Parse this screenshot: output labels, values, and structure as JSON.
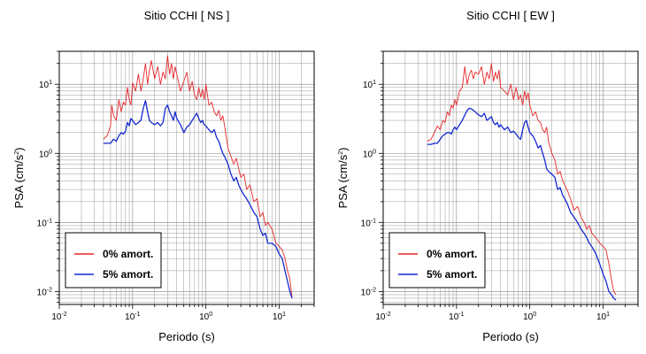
{
  "colors": {
    "undamped": "#e8262a",
    "damped": "#1428d2",
    "grid": "#9a9a9a",
    "frame": "#000000"
  },
  "chart_data": [
    {
      "type": "line",
      "title": "Sitio CCHI [ NS ]",
      "xlabel": "Periodo (s)",
      "ylabel_main": "PSA (cm/s",
      "ylabel_sup": "2",
      "ylabel_end": ")",
      "xscale": "log",
      "yscale": "log",
      "xlim": [
        0.01,
        30
      ],
      "ylim": [
        0.0065,
        30
      ],
      "grid": true,
      "legend_position": "bottom-left",
      "x_ticks": [
        {
          "base": "10",
          "exp": "-2",
          "value": 0.01
        },
        {
          "base": "10",
          "exp": "-1",
          "value": 0.1
        },
        {
          "base": "10",
          "exp": "0",
          "value": 1
        },
        {
          "base": "10",
          "exp": "1",
          "value": 10
        }
      ],
      "y_ticks": [
        {
          "base": "10",
          "exp": "-2",
          "value": 0.01
        },
        {
          "base": "10",
          "exp": "-1",
          "value": 0.1
        },
        {
          "base": "10",
          "exp": "0",
          "value": 1
        },
        {
          "base": "10",
          "exp": "1",
          "value": 10
        }
      ],
      "series": [
        {
          "name": "0% amort.",
          "x": [
            0.04,
            0.045,
            0.05,
            0.052,
            0.055,
            0.06,
            0.065,
            0.07,
            0.075,
            0.08,
            0.085,
            0.09,
            0.095,
            0.1,
            0.11,
            0.12,
            0.13,
            0.14,
            0.15,
            0.16,
            0.17,
            0.18,
            0.2,
            0.22,
            0.24,
            0.26,
            0.28,
            0.3,
            0.32,
            0.34,
            0.36,
            0.38,
            0.4,
            0.45,
            0.5,
            0.55,
            0.6,
            0.65,
            0.7,
            0.75,
            0.8,
            0.85,
            0.9,
            0.95,
            1.0,
            1.1,
            1.2,
            1.3,
            1.4,
            1.5,
            1.6,
            1.7,
            1.8,
            2.0,
            2.2,
            2.4,
            2.6,
            2.8,
            3.0,
            3.3,
            3.6,
            4.0,
            4.5,
            5.0,
            5.5,
            6.0,
            6.5,
            7.0,
            8.0,
            9.0,
            10.0,
            11.0,
            12.0,
            13.0,
            14.0,
            15.0
          ],
          "values": [
            1.6,
            1.8,
            2.5,
            5.0,
            3.5,
            3.0,
            6.0,
            4.0,
            5.5,
            5.0,
            9.0,
            6.0,
            5.0,
            10.5,
            8.0,
            14.0,
            8.0,
            12.0,
            20.0,
            10.0,
            16.0,
            22.0,
            12.0,
            18.0,
            10.0,
            15.0,
            12.0,
            26.0,
            14.0,
            20.0,
            12.0,
            18.0,
            14.0,
            8.0,
            11.0,
            15.0,
            8.0,
            11.0,
            7.0,
            6.0,
            9.0,
            6.5,
            8.5,
            6.0,
            10.0,
            5.0,
            5.5,
            4.0,
            3.5,
            4.2,
            3.0,
            3.5,
            2.5,
            1.2,
            0.9,
            0.7,
            0.85,
            0.6,
            0.45,
            0.5,
            0.3,
            0.35,
            0.2,
            0.22,
            0.12,
            0.14,
            0.09,
            0.1,
            0.08,
            0.05,
            0.045,
            0.04,
            0.03,
            0.02,
            0.015,
            0.008
          ]
        },
        {
          "name": "5% amort.",
          "x": [
            0.04,
            0.045,
            0.05,
            0.055,
            0.06,
            0.065,
            0.07,
            0.075,
            0.08,
            0.085,
            0.09,
            0.095,
            0.1,
            0.11,
            0.12,
            0.13,
            0.14,
            0.15,
            0.16,
            0.17,
            0.18,
            0.2,
            0.22,
            0.24,
            0.26,
            0.28,
            0.3,
            0.32,
            0.34,
            0.36,
            0.38,
            0.4,
            0.45,
            0.5,
            0.55,
            0.6,
            0.65,
            0.7,
            0.75,
            0.8,
            0.85,
            0.9,
            0.95,
            1.0,
            1.1,
            1.2,
            1.3,
            1.4,
            1.5,
            1.6,
            1.7,
            1.8,
            2.0,
            2.2,
            2.4,
            2.6,
            2.8,
            3.0,
            3.3,
            3.6,
            4.0,
            4.5,
            5.0,
            5.5,
            6.0,
            6.5,
            7.0,
            8.0,
            9.0,
            10.0,
            11.0,
            12.0,
            13.0,
            14.0,
            15.0
          ],
          "values": [
            1.4,
            1.4,
            1.4,
            1.6,
            1.5,
            1.8,
            2.0,
            1.9,
            2.1,
            2.8,
            2.5,
            3.2,
            3.0,
            2.6,
            2.8,
            3.0,
            4.5,
            5.8,
            4.0,
            3.0,
            2.8,
            2.6,
            2.8,
            2.5,
            2.8,
            4.5,
            5.0,
            4.0,
            3.5,
            3.0,
            4.0,
            3.2,
            2.6,
            2.0,
            2.4,
            2.6,
            3.0,
            3.4,
            3.8,
            3.2,
            2.8,
            3.0,
            2.6,
            2.5,
            2.2,
            2.0,
            2.2,
            1.7,
            1.5,
            1.2,
            1.0,
            0.9,
            0.7,
            0.5,
            0.4,
            0.45,
            0.35,
            0.3,
            0.25,
            0.22,
            0.18,
            0.14,
            0.12,
            0.08,
            0.065,
            0.07,
            0.05,
            0.05,
            0.045,
            0.035,
            0.03,
            0.02,
            0.014,
            0.01,
            0.008
          ]
        }
      ]
    },
    {
      "type": "line",
      "title": "Sitio CCHI [ EW ]",
      "xlabel": "Periodo (s)",
      "ylabel_main": "PSA (cm/s",
      "ylabel_sup": "2",
      "ylabel_end": ")",
      "xscale": "log",
      "yscale": "log",
      "xlim": [
        0.01,
        30
      ],
      "ylim": [
        0.0065,
        30
      ],
      "grid": true,
      "legend_position": "bottom-left",
      "x_ticks": [
        {
          "base": "10",
          "exp": "-2",
          "value": 0.01
        },
        {
          "base": "10",
          "exp": "-1",
          "value": 0.1
        },
        {
          "base": "10",
          "exp": "0",
          "value": 1
        },
        {
          "base": "10",
          "exp": "1",
          "value": 10
        }
      ],
      "y_ticks": [
        {
          "base": "10",
          "exp": "-2",
          "value": 0.01
        },
        {
          "base": "10",
          "exp": "-1",
          "value": 0.1
        },
        {
          "base": "10",
          "exp": "0",
          "value": 1
        },
        {
          "base": "10",
          "exp": "1",
          "value": 10
        }
      ],
      "series": [
        {
          "name": "0% amort.",
          "x": [
            0.04,
            0.045,
            0.05,
            0.055,
            0.06,
            0.065,
            0.07,
            0.075,
            0.08,
            0.085,
            0.09,
            0.095,
            0.1,
            0.11,
            0.12,
            0.13,
            0.14,
            0.15,
            0.16,
            0.17,
            0.18,
            0.2,
            0.22,
            0.24,
            0.26,
            0.28,
            0.3,
            0.32,
            0.34,
            0.36,
            0.38,
            0.4,
            0.45,
            0.5,
            0.55,
            0.6,
            0.65,
            0.7,
            0.75,
            0.8,
            0.85,
            0.9,
            0.95,
            1.0,
            1.1,
            1.2,
            1.3,
            1.4,
            1.5,
            1.6,
            1.7,
            1.8,
            2.0,
            2.2,
            2.4,
            2.6,
            2.8,
            3.0,
            3.3,
            3.6,
            4.0,
            4.5,
            5.0,
            5.5,
            6.0,
            6.5,
            7.0,
            8.0,
            9.0,
            10.0,
            11.0,
            12.0,
            13.0,
            14.0,
            15.0
          ],
          "values": [
            1.5,
            1.6,
            2.0,
            2.5,
            2.2,
            3.0,
            2.8,
            4.0,
            3.5,
            5.0,
            4.5,
            6.0,
            5.0,
            8.0,
            9.0,
            18.0,
            10.0,
            14.0,
            16.0,
            12.0,
            15.0,
            14.0,
            18.0,
            10.0,
            15.0,
            12.0,
            20.0,
            11.0,
            15.0,
            12.0,
            16.0,
            9.0,
            8.0,
            7.0,
            10.0,
            6.0,
            9.0,
            6.0,
            7.0,
            5.0,
            8.0,
            6.0,
            7.5,
            5.0,
            3.5,
            4.0,
            3.0,
            2.8,
            2.2,
            2.0,
            2.4,
            1.5,
            1.0,
            0.8,
            0.5,
            0.55,
            0.4,
            0.35,
            0.28,
            0.22,
            0.15,
            0.17,
            0.12,
            0.1,
            0.08,
            0.09,
            0.07,
            0.06,
            0.05,
            0.045,
            0.04,
            0.025,
            0.015,
            0.01,
            0.009
          ]
        },
        {
          "name": "5% amort.",
          "x": [
            0.04,
            0.045,
            0.05,
            0.055,
            0.06,
            0.065,
            0.07,
            0.075,
            0.08,
            0.085,
            0.09,
            0.095,
            0.1,
            0.11,
            0.12,
            0.13,
            0.14,
            0.15,
            0.16,
            0.17,
            0.18,
            0.2,
            0.22,
            0.24,
            0.26,
            0.28,
            0.3,
            0.32,
            0.34,
            0.36,
            0.38,
            0.4,
            0.45,
            0.5,
            0.55,
            0.6,
            0.65,
            0.7,
            0.75,
            0.8,
            0.85,
            0.9,
            0.95,
            1.0,
            1.1,
            1.2,
            1.3,
            1.4,
            1.5,
            1.6,
            1.7,
            1.8,
            2.0,
            2.2,
            2.4,
            2.6,
            2.8,
            3.0,
            3.3,
            3.6,
            4.0,
            4.5,
            5.0,
            5.5,
            6.0,
            6.5,
            7.0,
            8.0,
            9.0,
            10.0,
            11.0,
            12.0,
            13.0,
            14.0,
            15.0
          ],
          "values": [
            1.35,
            1.35,
            1.4,
            1.4,
            1.6,
            1.8,
            1.9,
            2.0,
            2.0,
            1.9,
            2.2,
            2.4,
            2.2,
            2.6,
            3.0,
            3.6,
            4.2,
            4.5,
            4.4,
            4.2,
            4.0,
            3.6,
            3.4,
            3.8,
            3.0,
            3.2,
            3.4,
            2.8,
            2.6,
            2.8,
            2.4,
            2.6,
            2.2,
            2.4,
            2.0,
            2.1,
            1.9,
            1.7,
            1.6,
            2.2,
            2.8,
            3.0,
            2.4,
            2.0,
            1.8,
            1.5,
            1.2,
            1.3,
            1.0,
            0.8,
            0.6,
            0.55,
            0.5,
            0.45,
            0.3,
            0.32,
            0.25,
            0.22,
            0.18,
            0.14,
            0.12,
            0.1,
            0.08,
            0.07,
            0.06,
            0.05,
            0.045,
            0.035,
            0.025,
            0.018,
            0.014,
            0.01,
            0.009,
            0.008,
            0.0075
          ]
        }
      ]
    }
  ]
}
